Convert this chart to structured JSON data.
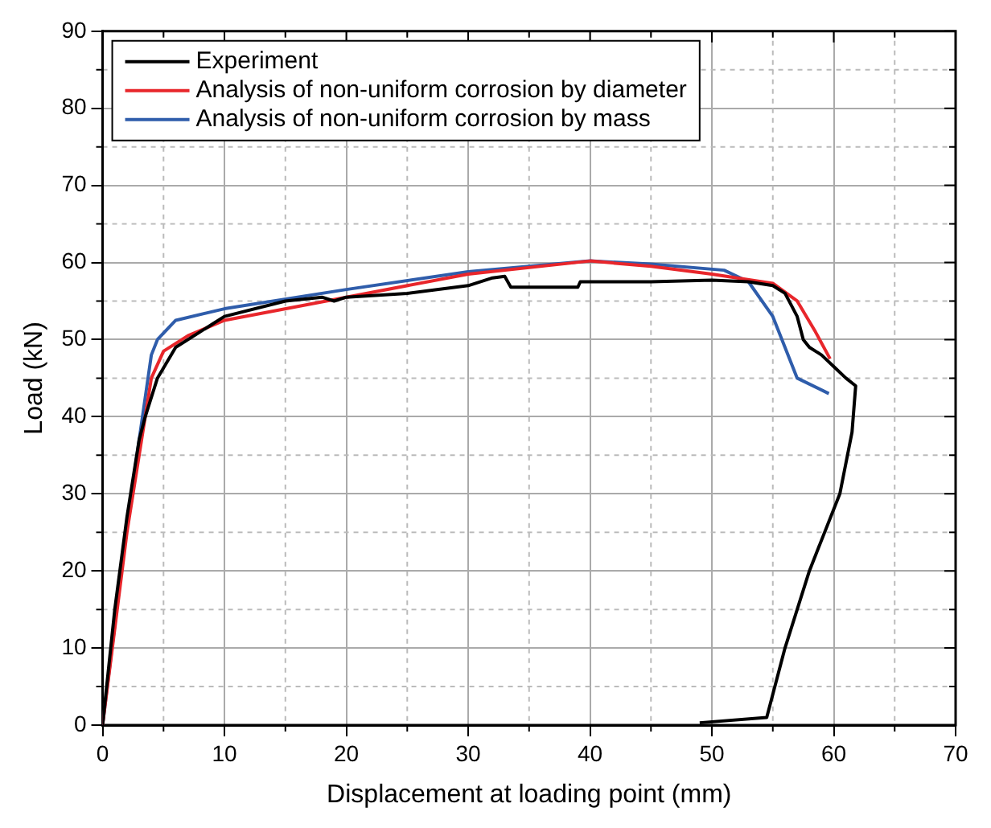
{
  "chart_data": {
    "type": "line",
    "xlabel": "Displacement at loading point (mm)",
    "ylabel": "Load (kN)",
    "xlim": [
      0,
      70
    ],
    "xticks": [
      0,
      10,
      20,
      30,
      40,
      50,
      60,
      70
    ],
    "ylim": [
      0,
      90
    ],
    "yticks": [
      0,
      10,
      20,
      30,
      40,
      50,
      60,
      70,
      80,
      90
    ],
    "grid": true,
    "legend": "top left",
    "marker": "none",
    "line_style": "solid",
    "series": [
      {
        "name": "Experiment",
        "color": "#000000",
        "x": [
          0,
          1,
          2,
          3,
          3.5,
          4.5,
          6,
          8,
          9,
          10,
          15,
          18,
          19,
          20,
          25,
          30,
          32,
          33,
          33.5,
          36,
          39,
          39.2,
          45,
          50,
          53,
          55,
          56,
          57,
          57.5,
          58,
          59,
          60,
          61,
          61.8,
          61.5,
          60.5,
          58,
          56,
          54.5,
          49
        ],
        "values": [
          0,
          15,
          27,
          37,
          40,
          45,
          49,
          51,
          52,
          53,
          55,
          55.5,
          55,
          55.5,
          56,
          57,
          58,
          58.2,
          56.8,
          56.8,
          56.8,
          57.5,
          57.5,
          57.7,
          57.5,
          57,
          56,
          53,
          50,
          49,
          48,
          46.5,
          45,
          44,
          38,
          30,
          20,
          10,
          1,
          0.3
        ]
      },
      {
        "name": "Analysis of non-uniform corrosion by diameter",
        "color": "#e8262b",
        "x": [
          0,
          2,
          4,
          5,
          7,
          10,
          20,
          30,
          40,
          45,
          50,
          55,
          57,
          58.5,
          59.7
        ],
        "values": [
          0,
          25,
          45,
          48.5,
          50.5,
          52.5,
          55.5,
          58.5,
          60.2,
          59.5,
          58.5,
          57.3,
          55,
          51,
          47.5
        ]
      },
      {
        "name": "Analysis of non-uniform corrosion by mass",
        "color": "#2f5dab",
        "x": [
          0,
          2,
          4,
          4.5,
          6,
          10,
          20,
          30,
          40,
          45,
          51,
          53,
          55,
          57,
          59.6
        ],
        "values": [
          0,
          26,
          48,
          50,
          52.5,
          54,
          56.5,
          58.8,
          60.2,
          59.8,
          59,
          57.5,
          53,
          45,
          43
        ]
      }
    ]
  }
}
